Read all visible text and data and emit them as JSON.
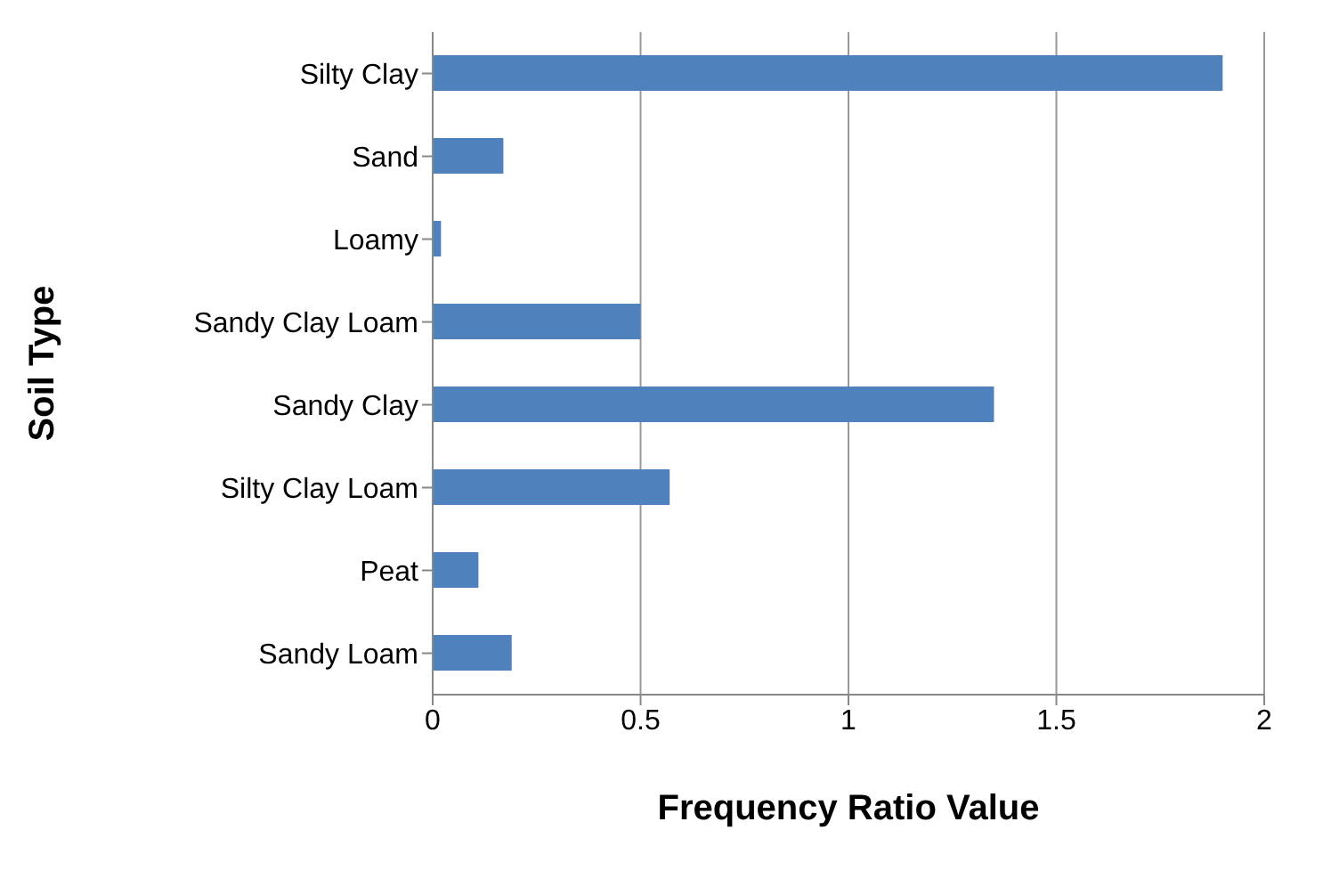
{
  "chart_data": {
    "type": "bar",
    "orientation": "horizontal",
    "xlabel": "Frequency Ratio Value",
    "ylabel": "Soil Type",
    "categories": [
      "Silty Clay",
      "Sand",
      "Loamy",
      "Sandy Clay Loam",
      "Sandy Clay",
      "Silty Clay Loam",
      "Peat",
      "Sandy Loam"
    ],
    "values": [
      1.9,
      0.17,
      0.02,
      0.5,
      1.35,
      0.57,
      0.11,
      0.19
    ],
    "color": "#4f81bd",
    "xlim": [
      0,
      2
    ],
    "xticks": [
      0,
      0.5,
      1,
      1.5,
      2
    ],
    "grid": "x"
  }
}
